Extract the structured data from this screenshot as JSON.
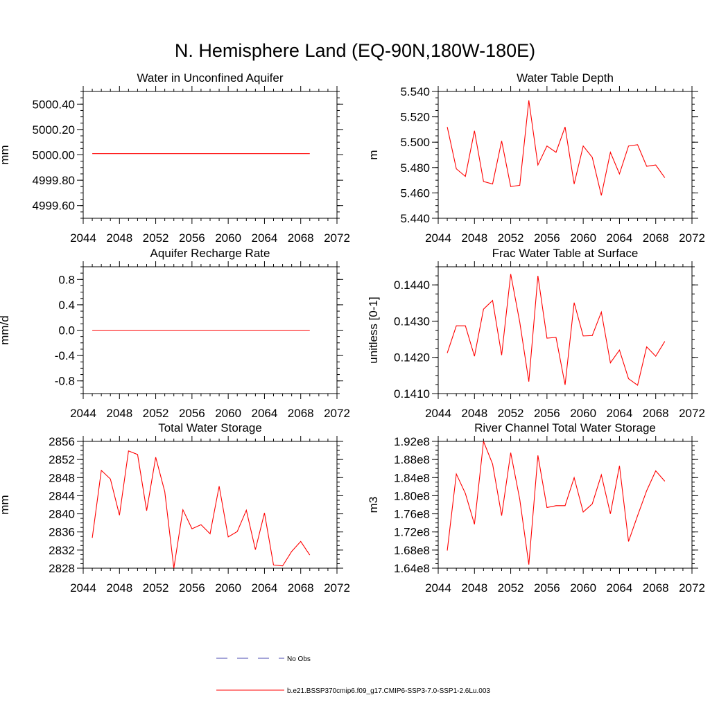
{
  "title": "N. Hemisphere Land (EQ-90N,180W-180E)",
  "chart_data": [
    {
      "type": "line",
      "title": "Water in Unconfined Aquifer",
      "ylabel": "mm",
      "xlim": [
        2044,
        2072
      ],
      "ylim": [
        4999.5,
        5000.5
      ],
      "xticks": [
        "2044",
        "2048",
        "2052",
        "2056",
        "2060",
        "2064",
        "2068",
        "2072"
      ],
      "yticks": [
        {
          "value": 4999.6,
          "label": "4999.60"
        },
        {
          "value": 4999.8,
          "label": "4999.80"
        },
        {
          "value": 5000.0,
          "label": "5000.00"
        },
        {
          "value": 5000.2,
          "label": "5000.20"
        },
        {
          "value": 5000.4,
          "label": "5000.40"
        }
      ],
      "series": [
        {
          "color": "#ff0000",
          "x": [
            2045,
            2046,
            2047,
            2048,
            2049,
            2050,
            2051,
            2052,
            2053,
            2054,
            2055,
            2056,
            2057,
            2058,
            2059,
            2060,
            2061,
            2062,
            2063,
            2064,
            2065,
            2066,
            2067,
            2068,
            2069
          ],
          "y": [
            5000.01,
            5000.01,
            5000.01,
            5000.01,
            5000.01,
            5000.01,
            5000.01,
            5000.01,
            5000.01,
            5000.01,
            5000.01,
            5000.01,
            5000.01,
            5000.01,
            5000.01,
            5000.01,
            5000.01,
            5000.01,
            5000.01,
            5000.01,
            5000.01,
            5000.01,
            5000.01,
            5000.01,
            5000.01
          ]
        }
      ]
    },
    {
      "type": "line",
      "title": "Water Table Depth",
      "ylabel": "m",
      "xlim": [
        2044,
        2072
      ],
      "ylim": [
        5.44,
        5.54
      ],
      "xticks": [
        "2044",
        "2048",
        "2052",
        "2056",
        "2060",
        "2064",
        "2068",
        "2072"
      ],
      "yticks": [
        {
          "value": 5.44,
          "label": "5.440"
        },
        {
          "value": 5.46,
          "label": "5.460"
        },
        {
          "value": 5.48,
          "label": "5.480"
        },
        {
          "value": 5.5,
          "label": "5.500"
        },
        {
          "value": 5.52,
          "label": "5.520"
        },
        {
          "value": 5.54,
          "label": "5.540"
        }
      ],
      "series": [
        {
          "color": "#ff0000",
          "x": [
            2045,
            2046,
            2047,
            2048,
            2049,
            2050,
            2051,
            2052,
            2053,
            2054,
            2055,
            2056,
            2057,
            2058,
            2059,
            2060,
            2061,
            2062,
            2063,
            2064,
            2065,
            2066,
            2067,
            2068,
            2069
          ],
          "y": [
            5.512,
            5.479,
            5.473,
            5.509,
            5.469,
            5.467,
            5.501,
            5.465,
            5.466,
            5.533,
            5.482,
            5.497,
            5.492,
            5.512,
            5.467,
            5.497,
            5.488,
            5.458,
            5.492,
            5.475,
            5.497,
            5.498,
            5.481,
            5.482,
            5.472
          ]
        }
      ]
    },
    {
      "type": "line",
      "title": "Aquifer Recharge Rate",
      "ylabel": "mm/d",
      "xlim": [
        2044,
        2072
      ],
      "ylim": [
        -1.0,
        1.0
      ],
      "xticks": [
        "2044",
        "2048",
        "2052",
        "2056",
        "2060",
        "2064",
        "2068",
        "2072"
      ],
      "yticks": [
        {
          "value": -0.8,
          "label": "-0.8"
        },
        {
          "value": -0.4,
          "label": "-0.4"
        },
        {
          "value": 0.0,
          "label": "0.0"
        },
        {
          "value": 0.4,
          "label": "0.4"
        },
        {
          "value": 0.8,
          "label": "0.8"
        }
      ],
      "series": [
        {
          "color": "#ff0000",
          "x": [
            2045,
            2046,
            2047,
            2048,
            2049,
            2050,
            2051,
            2052,
            2053,
            2054,
            2055,
            2056,
            2057,
            2058,
            2059,
            2060,
            2061,
            2062,
            2063,
            2064,
            2065,
            2066,
            2067,
            2068,
            2069
          ],
          "y": [
            0,
            0,
            0,
            0,
            0,
            0,
            0,
            0,
            0,
            0,
            0,
            0,
            0,
            0,
            0,
            0,
            0,
            0,
            0,
            0,
            0,
            0,
            0,
            0,
            0
          ]
        }
      ]
    },
    {
      "type": "line",
      "title": "Frac Water Table at Surface",
      "ylabel": "unitless [0-1]",
      "xlim": [
        2044,
        2072
      ],
      "ylim": [
        0.141,
        0.1445
      ],
      "xticks": [
        "2044",
        "2048",
        "2052",
        "2056",
        "2060",
        "2064",
        "2068",
        "2072"
      ],
      "yticks": [
        {
          "value": 0.141,
          "label": "0.1410"
        },
        {
          "value": 0.142,
          "label": "0.1420"
        },
        {
          "value": 0.143,
          "label": "0.1430"
        },
        {
          "value": 0.144,
          "label": "0.1440"
        }
      ],
      "series": [
        {
          "color": "#ff0000",
          "x": [
            2045,
            2046,
            2047,
            2048,
            2049,
            2050,
            2051,
            2052,
            2053,
            2054,
            2055,
            2056,
            2057,
            2058,
            2059,
            2060,
            2061,
            2062,
            2063,
            2064,
            2065,
            2066,
            2067,
            2068,
            2069
          ],
          "y": [
            0.14212,
            0.14287,
            0.14287,
            0.14203,
            0.14333,
            0.14357,
            0.14206,
            0.1443,
            0.14297,
            0.14133,
            0.14425,
            0.14253,
            0.14255,
            0.14124,
            0.14351,
            0.14259,
            0.1426,
            0.14325,
            0.14185,
            0.1422,
            0.14141,
            0.14123,
            0.14229,
            0.14203,
            0.14244
          ]
        }
      ]
    },
    {
      "type": "line",
      "title": "Total Water Storage",
      "ylabel": "mm",
      "xlim": [
        2044,
        2072
      ],
      "ylim": [
        2828,
        2856
      ],
      "xticks": [
        "2044",
        "2048",
        "2052",
        "2056",
        "2060",
        "2064",
        "2068",
        "2072"
      ],
      "yticks": [
        {
          "value": 2828,
          "label": "2828"
        },
        {
          "value": 2832,
          "label": "2832"
        },
        {
          "value": 2836,
          "label": "2836"
        },
        {
          "value": 2840,
          "label": "2840"
        },
        {
          "value": 2844,
          "label": "2844"
        },
        {
          "value": 2848,
          "label": "2848"
        },
        {
          "value": 2852,
          "label": "2852"
        },
        {
          "value": 2856,
          "label": "2856"
        }
      ],
      "series": [
        {
          "color": "#ff0000",
          "x": [
            2045,
            2046,
            2047,
            2048,
            2049,
            2050,
            2051,
            2052,
            2053,
            2054,
            2055,
            2056,
            2057,
            2058,
            2059,
            2060,
            2061,
            2062,
            2063,
            2064,
            2065,
            2066,
            2067,
            2068,
            2069
          ],
          "y": [
            2834.7,
            2849.6,
            2847.7,
            2839.7,
            2853.9,
            2853.1,
            2840.7,
            2852.5,
            2844.9,
            2828.0,
            2840.9,
            2836.7,
            2837.6,
            2835.6,
            2846.1,
            2834.9,
            2836.1,
            2840.8,
            2832.1,
            2840.2,
            2828.7,
            2828.5,
            2831.7,
            2833.9,
            2830.9
          ]
        }
      ]
    },
    {
      "type": "line",
      "title": "River Channel Total Water Storage",
      "ylabel": "m3",
      "xlim": [
        2044,
        2072
      ],
      "ylim": [
        164000000.0,
        192000000.0
      ],
      "xticks": [
        "2044",
        "2048",
        "2052",
        "2056",
        "2060",
        "2064",
        "2068",
        "2072"
      ],
      "yticks": [
        {
          "value": 164000000.0,
          "label": "1.64e8"
        },
        {
          "value": 168000000.0,
          "label": "1.68e8"
        },
        {
          "value": 172000000.0,
          "label": "1.72e8"
        },
        {
          "value": 176000000.0,
          "label": "1.76e8"
        },
        {
          "value": 180000000.0,
          "label": "1.80e8"
        },
        {
          "value": 184000000.0,
          "label": "1.84e8"
        },
        {
          "value": 188000000.0,
          "label": "1.88e8"
        },
        {
          "value": 192000000.0,
          "label": "1.92e8"
        }
      ],
      "series": [
        {
          "color": "#ff0000",
          "x": [
            2045,
            2046,
            2047,
            2048,
            2049,
            2050,
            2051,
            2052,
            2053,
            2054,
            2055,
            2056,
            2057,
            2058,
            2059,
            2060,
            2061,
            2062,
            2063,
            2064,
            2065,
            2066,
            2067,
            2068,
            2069
          ],
          "y": [
            167900000.0,
            184800000.0,
            180500000.0,
            173700000.0,
            192000000.0,
            187000000.0,
            175600000.0,
            189500000.0,
            179200000.0,
            164800000.0,
            188900000.0,
            177400000.0,
            177800000.0,
            177800000.0,
            184000000.0,
            176400000.0,
            178200000.0,
            184600000.0,
            176000000.0,
            186600000.0,
            169900000.0,
            175600000.0,
            181100000.0,
            185500000.0,
            183200000.0
          ]
        }
      ]
    }
  ],
  "legend": {
    "placement": "bottom-center",
    "items": [
      {
        "label": "No Obs",
        "color": "#4a4ab0",
        "style": "dashed"
      },
      {
        "label": "b.e21.BSSP370cmip6.f09_g17.CMIP6-SSP3-7.0-SSP1-2.6Lu.003",
        "color": "#ff0000",
        "style": "solid"
      }
    ]
  }
}
